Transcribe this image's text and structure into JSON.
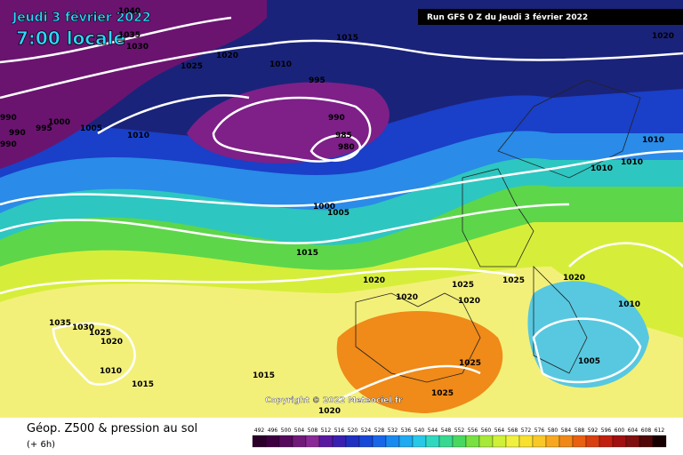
{
  "header": {
    "date": "Jeudi 3 février 2022",
    "time": "7:00 locale",
    "run": "Run GFS 0 Z du Jeudi 3 février 2022"
  },
  "copyright": "Copyright © 2022 Meteociel.fr",
  "legend": {
    "title": "Géop. Z500 & pression au sol",
    "subtitle": "(+ 6h)",
    "scale": [
      492,
      496,
      500,
      504,
      508,
      512,
      516,
      520,
      524,
      528,
      532,
      536,
      540,
      544,
      548,
      552,
      556,
      560,
      564,
      568,
      572,
      576,
      580,
      584,
      588,
      592,
      596,
      600,
      604,
      608,
      612
    ]
  },
  "isobar_labels": [
    1040,
    1035,
    1030,
    1025,
    1020,
    1010,
    1015,
    995,
    990,
    985,
    980,
    1010,
    1005,
    1000,
    995,
    990,
    990,
    990,
    1000,
    1005,
    1015,
    1020,
    1020,
    1025,
    1020,
    1025,
    1020,
    1010,
    1005,
    1025,
    1025,
    1020,
    1015,
    1010,
    1015,
    1035,
    1030,
    1025,
    1020,
    1020,
    1010,
    1010,
    1010
  ]
}
